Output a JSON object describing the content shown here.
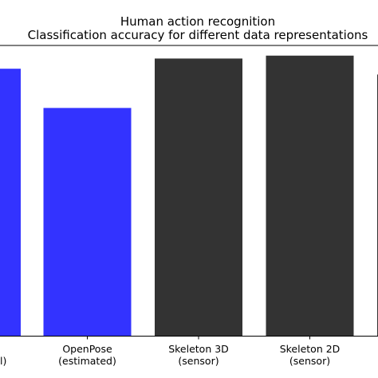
{
  "chart_data": {
    "type": "bar",
    "title": "Human action recognition",
    "subtitle": "Classification accuracy for different data representations",
    "categories": [
      "",
      "OpenPose",
      "Skeleton 3D",
      "Skeleton 2D",
      ""
    ],
    "category_sublabels": [
      "",
      "(estimated)",
      "(sensor)",
      "(sensor)",
      ""
    ],
    "first_category_visible_fragment": "l)",
    "values": [
      0.92,
      0.785,
      0.955,
      0.965,
      0.9
    ],
    "bar_colors": [
      "#3333ff",
      "#3333ff",
      "#333333",
      "#333333",
      "#333333"
    ],
    "ylim": [
      0,
      1.0
    ],
    "xlabel": "",
    "ylabel": "",
    "grid": false,
    "legend": "none"
  },
  "colors": {
    "blue_bar": "#3333ff",
    "dark_bar": "#333333",
    "axis": "#000000"
  }
}
